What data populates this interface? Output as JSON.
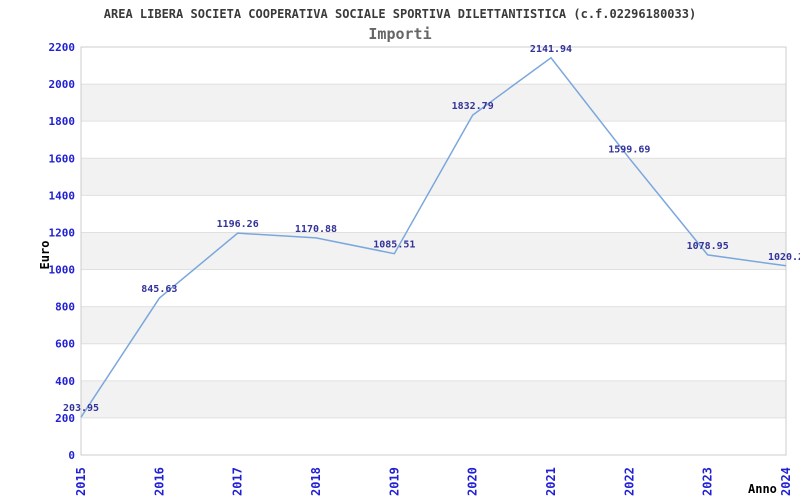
{
  "chart_data": {
    "type": "line",
    "title": "AREA LIBERA SOCIETA COOPERATIVA SOCIALE SPORTIVA DILETTANTISTICA (c.f.02296180033)",
    "subtitle": "Importi",
    "xlabel": "Anno",
    "ylabel": "Euro",
    "categories": [
      "2015",
      "2016",
      "2017",
      "2018",
      "2019",
      "2020",
      "2021",
      "2022",
      "2023",
      "2024"
    ],
    "values": [
      203.95,
      845.63,
      1196.26,
      1170.88,
      1085.51,
      1832.79,
      2141.94,
      1599.69,
      1078.95,
      1020.2
    ],
    "point_labels": [
      "203.95",
      "845.63",
      "1196.26",
      "1170.88",
      "1085.51",
      "1832.79",
      "2141.94",
      "1599.69",
      "1078.95",
      "1020.2"
    ],
    "yticks": [
      0,
      200,
      400,
      600,
      800,
      1000,
      1200,
      1400,
      1600,
      1800,
      2000,
      2200
    ],
    "ylim": [
      0,
      2200
    ],
    "ytick_step": 200,
    "grid": true,
    "band_fill": true,
    "legend": "none",
    "colors": {
      "line": "#7aa7dc",
      "tick_label": "#2121d3",
      "point_label": "#333399",
      "title": "#3a3a3a",
      "subtitle": "#666666",
      "band": "#f2f2f2",
      "gridline": "#e0e0e0",
      "frame": "#cccccc",
      "axis_title": "#000000"
    }
  }
}
